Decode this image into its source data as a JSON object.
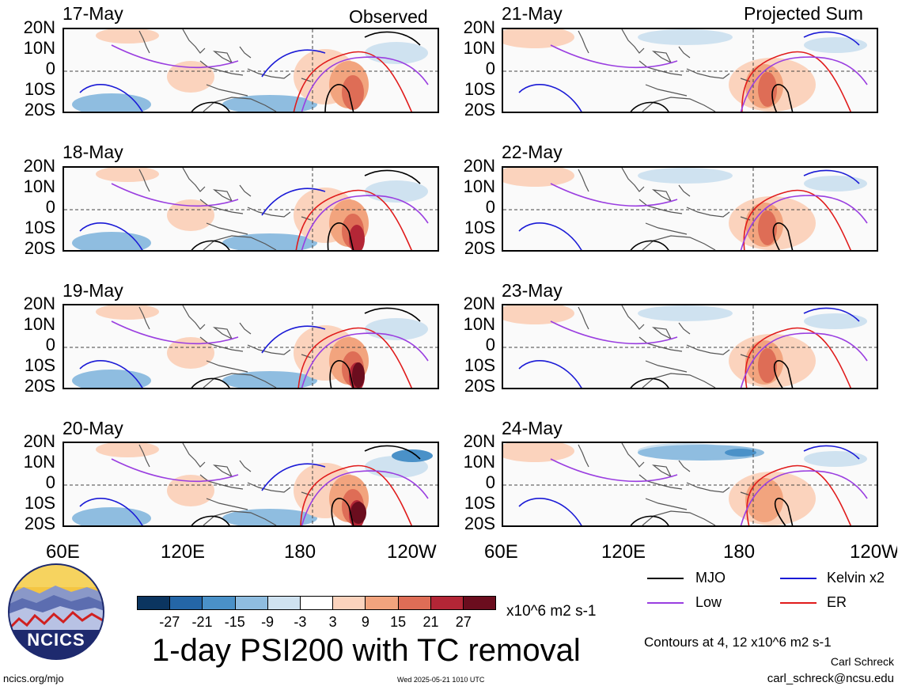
{
  "columns": {
    "left_tag": "Observed",
    "right_tag": "Projected Sum"
  },
  "panels_left": [
    "17-May",
    "18-May",
    "19-May",
    "20-May"
  ],
  "panels_right": [
    "21-May",
    "22-May",
    "23-May",
    "24-May"
  ],
  "lat_labels": [
    "20N",
    "10N",
    "0",
    "10S",
    "20S"
  ],
  "lon_labels": [
    "60E",
    "120E",
    "180",
    "120W"
  ],
  "colorbar": {
    "ticks": [
      "-27",
      "-21",
      "-15",
      "-9",
      "-3",
      "3",
      "9",
      "15",
      "21",
      "27"
    ],
    "colors": [
      "#0b3560",
      "#2466a7",
      "#4a91c8",
      "#8fbde0",
      "#cfe2f0",
      "#ffffff",
      "#fbd3bd",
      "#f2a47e",
      "#de6d56",
      "#b32636",
      "#6b0d1e"
    ],
    "units": "x10^6 m2 s-1"
  },
  "title": "1-day PSI200 with TC removal",
  "legend": {
    "mjo": "MJO",
    "kelvin": "Kelvin x2",
    "low": "Low",
    "er": "ER",
    "colors": {
      "mjo": "#000000",
      "kelvin": "#1a1ad6",
      "low": "#9a3ee0",
      "er": "#e01b1b"
    }
  },
  "contours_note": "Contours at 4, 12 x10^6 m2 s-1",
  "author": "Carl Schreck",
  "email": "carl_schreck@ncsu.edu",
  "site": "ncics.org/mjo",
  "timestamp": "Wed 2025-05-21 1010 UTC",
  "logo_text": "NCICS"
}
